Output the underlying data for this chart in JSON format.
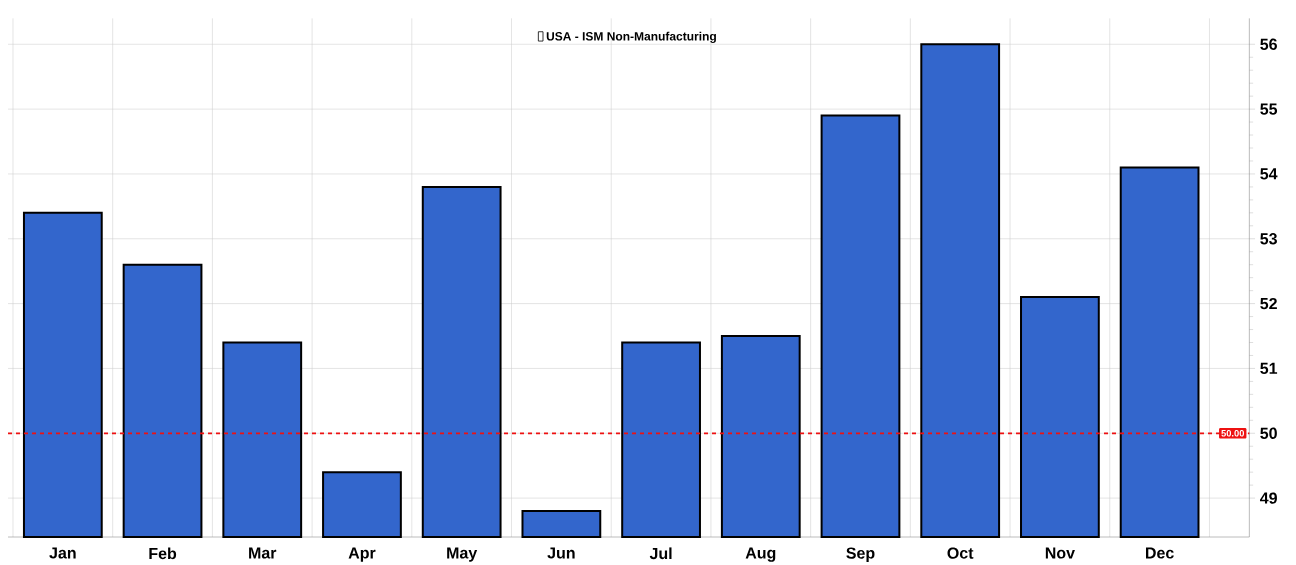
{
  "chart_data": {
    "type": "bar",
    "categories": [
      "Jan",
      "Feb",
      "Mar",
      "Apr",
      "May",
      "Jun",
      "Jul",
      "Aug",
      "Sep",
      "Oct",
      "Nov",
      "Dec"
    ],
    "series": [
      {
        "name": "USA - ISM Non-Manufacturing",
        "color": "#3366cc",
        "values": [
          53.4,
          52.6,
          51.4,
          49.4,
          53.8,
          48.8,
          51.4,
          51.5,
          54.9,
          56.0,
          52.1,
          54.1
        ]
      }
    ],
    "ylim": [
      48.4,
      56.4
    ],
    "yticks": [
      49,
      50,
      51,
      52,
      53,
      54,
      55,
      56
    ],
    "ref_lines": [
      {
        "axis": "y",
        "value": 50,
        "label": "50.00",
        "color": "#ee1111",
        "line_style": "dashed"
      }
    ],
    "grid": true,
    "legend": "top"
  }
}
